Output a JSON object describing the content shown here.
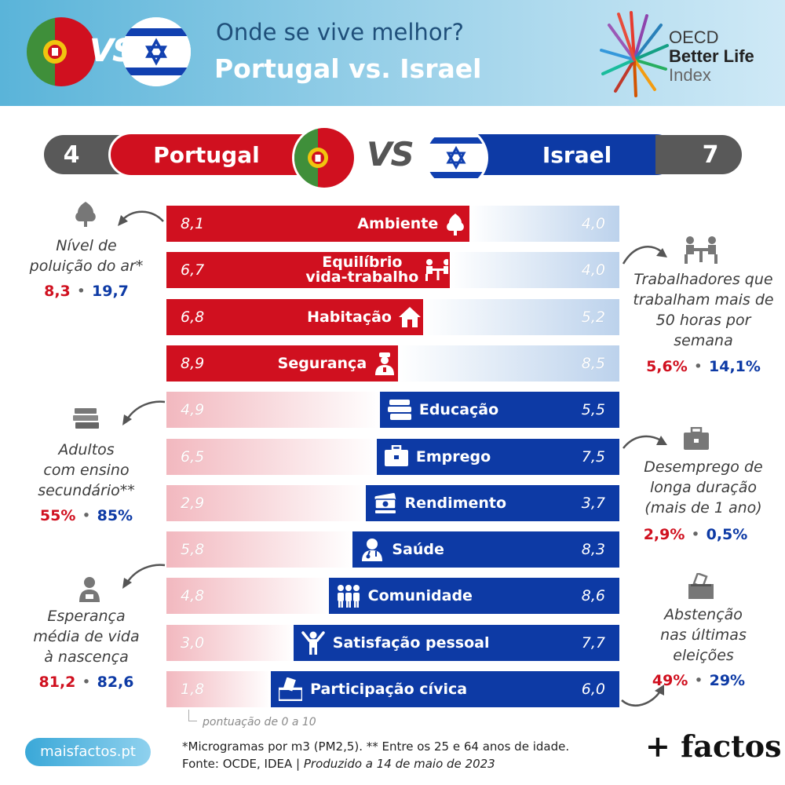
{
  "header": {
    "title": "Onde se vive melhor?",
    "subtitle": "Portugal vs. Israel",
    "vs": "VS",
    "logo": {
      "line1": "OECD",
      "line2": "Better Life",
      "line3": "Index"
    }
  },
  "scoreboard": {
    "pt_score": "4",
    "pt_name": "Portugal",
    "vs": "VS",
    "il_name": "Israel",
    "il_score": "7"
  },
  "colors": {
    "pt_red": "#d0101f",
    "il_blue": "#0d3aa5",
    "pt_light": "#f2b8bf",
    "il_light": "#bcd2ec"
  },
  "chart_data": {
    "type": "bar",
    "subtype": "diverging-stacked",
    "scale_note": "pontuação de 0 a 10",
    "categories": [
      {
        "label": "Ambiente",
        "label_lines": [
          "Ambiente"
        ],
        "pt": "8,1",
        "il": "4,0",
        "pt_value": 8.1,
        "il_value": 4.0,
        "winner": "pt",
        "icon": "tree-icon"
      },
      {
        "label": "Equilíbrio vida-trabalho",
        "label_lines": [
          "Equilíbrio",
          "vida-trabalho"
        ],
        "pt": "6,7",
        "il": "4,0",
        "pt_value": 6.7,
        "il_value": 4.0,
        "winner": "pt",
        "icon": "work-table-icon"
      },
      {
        "label": "Habitação",
        "label_lines": [
          "Habitação"
        ],
        "pt": "6,8",
        "il": "5,2",
        "pt_value": 6.8,
        "il_value": 5.2,
        "winner": "pt",
        "icon": "house-icon"
      },
      {
        "label": "Segurança",
        "label_lines": [
          "Segurança"
        ],
        "pt": "8,9",
        "il": "8,5",
        "pt_value": 8.9,
        "il_value": 8.5,
        "winner": "pt",
        "icon": "police-icon"
      },
      {
        "label": "Educação",
        "label_lines": [
          "Educação"
        ],
        "pt": "4,9",
        "il": "5,5",
        "pt_value": 4.9,
        "il_value": 5.5,
        "winner": "il",
        "icon": "books-icon"
      },
      {
        "label": "Emprego",
        "label_lines": [
          "Emprego"
        ],
        "pt": "6,5",
        "il": "7,5",
        "pt_value": 6.5,
        "il_value": 7.5,
        "winner": "il",
        "icon": "briefcase-icon"
      },
      {
        "label": "Rendimento",
        "label_lines": [
          "Rendimento"
        ],
        "pt": "2,9",
        "il": "3,7",
        "pt_value": 2.9,
        "il_value": 3.7,
        "winner": "il",
        "icon": "money-icon"
      },
      {
        "label": "Saúde",
        "label_lines": [
          "Saúde"
        ],
        "pt": "5,8",
        "il": "8,3",
        "pt_value": 5.8,
        "il_value": 8.3,
        "winner": "il",
        "icon": "doctor-icon"
      },
      {
        "label": "Comunidade",
        "label_lines": [
          "Comunidade"
        ],
        "pt": "4,8",
        "il": "8,6",
        "pt_value": 4.8,
        "il_value": 8.6,
        "winner": "il",
        "icon": "people-icon"
      },
      {
        "label": "Satisfação pessoal",
        "label_lines": [
          "Satisfação pessoal"
        ],
        "pt": "3,0",
        "il": "7,7",
        "pt_value": 3.0,
        "il_value": 7.7,
        "winner": "il",
        "icon": "cheer-icon"
      },
      {
        "label": "Participação cívica",
        "label_lines": [
          "Participação cívica"
        ],
        "pt": "1,8",
        "il": "6,0",
        "pt_value": 1.8,
        "il_value": 6.0,
        "winner": "il",
        "icon": "ballot-icon"
      }
    ]
  },
  "side_notes": {
    "air": {
      "lines": [
        "Nível de",
        "poluição do ar*"
      ],
      "pt": "8,3",
      "il": "19,7",
      "dot": "•"
    },
    "work_hours": {
      "lines": [
        "Trabalhadores que",
        "trabalham mais de",
        "50 horas por",
        "semana"
      ],
      "pt": "5,6%",
      "il": "14,1%",
      "dot": "•"
    },
    "education": {
      "lines": [
        "Adultos",
        "com ensino",
        "secundário**"
      ],
      "pt": "55%",
      "il": "85%",
      "dot": "•"
    },
    "unemployment": {
      "lines": [
        "Desemprego de",
        "longa duração",
        "(mais de 1 ano)"
      ],
      "pt": "2,9%",
      "il": "0,5%",
      "dot": "•"
    },
    "life": {
      "lines": [
        "Esperança",
        "média de vida",
        "à nascença"
      ],
      "pt": "81,2",
      "il": "82,6",
      "dot": "•"
    },
    "abstention": {
      "lines": [
        "Abstenção",
        "nas últimas",
        "eleições"
      ],
      "pt": "49%",
      "il": "29%",
      "dot": "•"
    }
  },
  "footer": {
    "site": "maisfactos.pt",
    "note_line1": "*Microgramas por m3 (PM2,5). ** Entre os 25 e 64 anos de idade.",
    "note_source": "Fonte: OCDE, IDEA | ",
    "note_produced": "Produzido a 14 de maio de 2023",
    "brand": "+ factos"
  }
}
